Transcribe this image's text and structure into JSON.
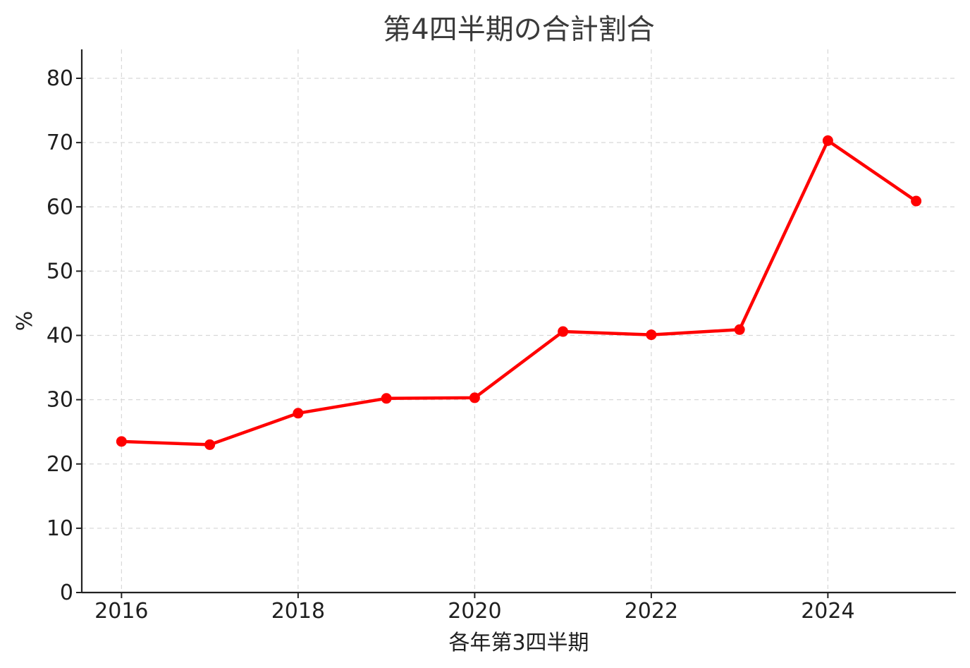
{
  "chart_data": {
    "type": "line",
    "title": "第4四半期の合計割合",
    "xlabel": "各年第3四半期",
    "ylabel": "%",
    "x": [
      2016,
      2017,
      2018,
      2019,
      2020,
      2021,
      2022,
      2023,
      2024,
      2025
    ],
    "series": [
      {
        "values": [
          23.5,
          23.0,
          27.9,
          30.2,
          30.3,
          40.6,
          40.1,
          40.9,
          70.3,
          60.9
        ],
        "color": "#ff0000",
        "marker": "circle"
      }
    ],
    "xticks": [
      "2016",
      "2018",
      "2020",
      "2022",
      "2024"
    ],
    "yticks": [
      "0",
      "10",
      "20",
      "30",
      "40",
      "50",
      "60",
      "70",
      "80"
    ],
    "xlim": [
      2015.55,
      2025.45
    ],
    "ylim": [
      0,
      84.5
    ],
    "grid": true,
    "legend": "none"
  }
}
